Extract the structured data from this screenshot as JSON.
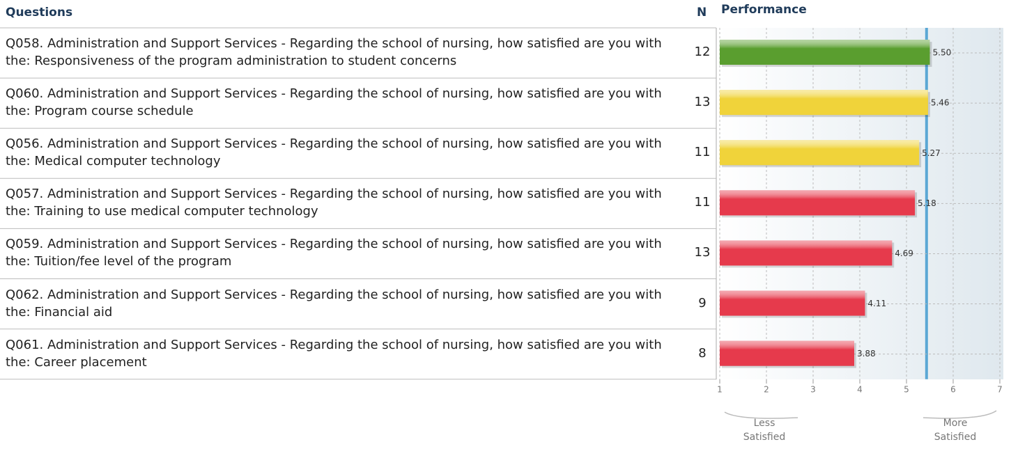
{
  "chart_data": {
    "type": "bar",
    "orientation": "horizontal",
    "headers": {
      "questions": "Questions",
      "n": "N",
      "performance": "Performance"
    },
    "categories": [
      "Q058. Administration and Support Services - Regarding the school of nursing, how satisfied are you with the: Responsiveness of the program administration to student concerns",
      "Q060. Administration and Support Services - Regarding the school of nursing, how satisfied are you with the: Program course schedule",
      "Q056. Administration and Support Services - Regarding the school of nursing, how satisfied are you with the: Medical computer technology",
      "Q057. Administration and Support Services - Regarding the school of nursing, how satisfied are you with the: Training to use medical computer technology",
      "Q059. Administration and Support Services - Regarding the school of nursing, how satisfied are you with the: Tuition/fee level of the program",
      "Q062. Administration and Support Services - Regarding the school of nursing, how satisfied are you with the: Financial aid",
      "Q061. Administration and Support Services - Regarding the school of nursing, how satisfied are you with the: Career placement"
    ],
    "n": [
      12,
      13,
      11,
      11,
      13,
      9,
      8
    ],
    "values": [
      5.5,
      5.46,
      5.27,
      5.18,
      4.69,
      4.11,
      3.88
    ],
    "value_labels": [
      "5.50",
      "5.46",
      "5.27",
      "5.18",
      "4.69",
      "4.11",
      "3.88"
    ],
    "colors": [
      "#5a9e2f",
      "#f0d33a",
      "#f0d33a",
      "#e63a4c",
      "#e63a4c",
      "#e63a4c",
      "#e63a4c"
    ],
    "xlim": [
      1,
      7
    ],
    "xticks": [
      1,
      2,
      3,
      4,
      5,
      6,
      7
    ],
    "grid": true,
    "reference_line": {
      "value": 5.43,
      "color": "#5ba7d4"
    },
    "annotations": [
      "Less Satisfied",
      "More Satisfied"
    ]
  }
}
